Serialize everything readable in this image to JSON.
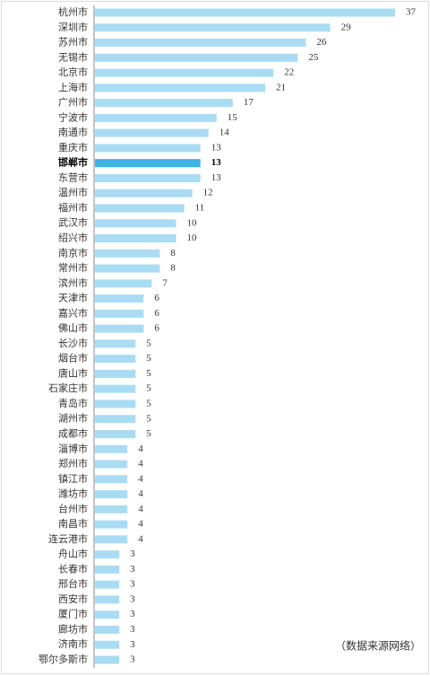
{
  "chart_data": {
    "type": "bar",
    "orientation": "horizontal",
    "categories": [
      "杭州市",
      "深圳市",
      "苏州市",
      "无锡市",
      "北京市",
      "上海市",
      "广州市",
      "宁波市",
      "南通市",
      "重庆市",
      "邯郸市",
      "东营市",
      "温州市",
      "福州市",
      "武汉市",
      "绍兴市",
      "南京市",
      "常州市",
      "滨州市",
      "天津市",
      "嘉兴市",
      "佛山市",
      "长沙市",
      "烟台市",
      "唐山市",
      "石家庄市",
      "青岛市",
      "湖州市",
      "成都市",
      "淄博市",
      "郑州市",
      "镇江市",
      "潍坊市",
      "台州市",
      "南昌市",
      "连云港市",
      "舟山市",
      "长春市",
      "邢台市",
      "西安市",
      "厦门市",
      "廊坊市",
      "济南市",
      "鄂尔多斯市"
    ],
    "values": [
      37,
      29,
      26,
      25,
      22,
      21,
      17,
      15,
      14,
      13,
      13,
      13,
      12,
      11,
      10,
      10,
      8,
      8,
      7,
      6,
      6,
      6,
      5,
      5,
      5,
      5,
      5,
      5,
      5,
      4,
      4,
      4,
      4,
      4,
      4,
      4,
      3,
      3,
      3,
      3,
      3,
      3,
      3,
      3
    ],
    "color": "#a9dcf3",
    "highlight": "邯郸市",
    "highlight_color": "#3bb3e3",
    "source_note": "（数据来源网络）"
  }
}
